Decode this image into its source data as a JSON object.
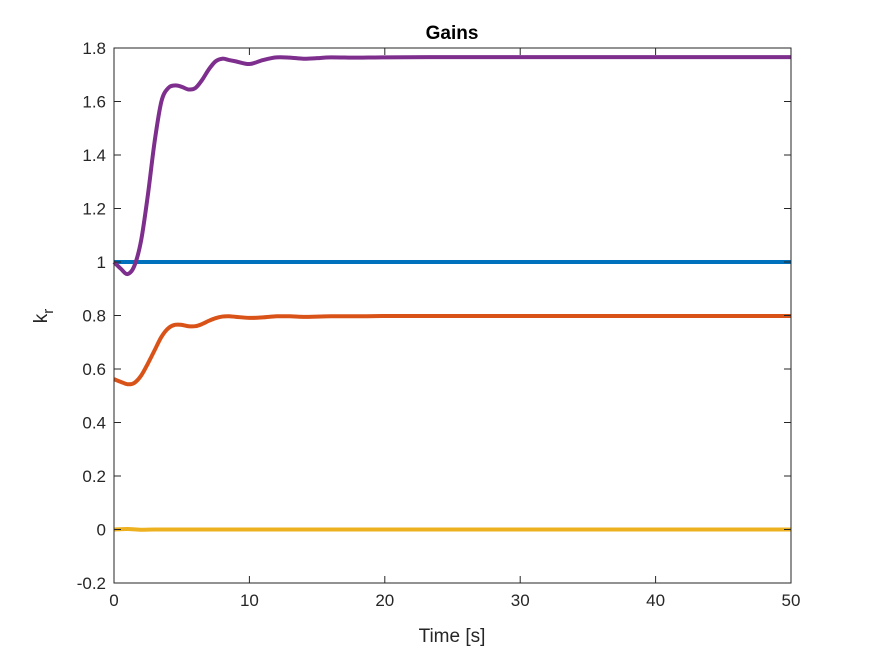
{
  "chart_data": {
    "type": "line",
    "title": "Gains",
    "xlabel": "Time [s]",
    "ylabel": "k",
    "ylabel_subscript": "r",
    "xlim": [
      0,
      50
    ],
    "ylim": [
      -0.2,
      1.8
    ],
    "xticks": [
      0,
      10,
      20,
      30,
      40,
      50
    ],
    "xtick_labels": [
      "0",
      "10",
      "20",
      "30",
      "40",
      "50"
    ],
    "yticks": [
      -0.2,
      0,
      0.2,
      0.4,
      0.6,
      0.8,
      1,
      1.2,
      1.4,
      1.6,
      1.8
    ],
    "ytick_labels": [
      "-0.2",
      "0",
      "0.2",
      "0.4",
      "0.6",
      "0.8",
      "1",
      "1.2",
      "1.4",
      "1.6",
      "1.8"
    ],
    "grid": false,
    "legend": "none",
    "series": [
      {
        "color": "#0072BD",
        "x": [
          0,
          50
        ],
        "y": [
          1.0,
          1.0
        ]
      },
      {
        "color": "#D95319",
        "x": [
          0,
          0.5,
          1.0,
          1.5,
          2.0,
          2.5,
          3.0,
          3.5,
          4.0,
          4.5,
          5.0,
          5.5,
          6.0,
          6.5,
          7.0,
          7.5,
          8.0,
          8.5,
          9.0,
          10.0,
          11.0,
          12.0,
          13.0,
          14.0,
          16.0,
          18.0,
          20.0,
          25.0,
          30.0,
          40.0,
          50.0
        ],
        "y": [
          0.562,
          0.552,
          0.543,
          0.548,
          0.575,
          0.62,
          0.67,
          0.72,
          0.752,
          0.765,
          0.765,
          0.76,
          0.76,
          0.768,
          0.78,
          0.79,
          0.796,
          0.797,
          0.795,
          0.791,
          0.793,
          0.797,
          0.797,
          0.795,
          0.797,
          0.797,
          0.798,
          0.798,
          0.798,
          0.798,
          0.798
        ]
      },
      {
        "color": "#EDB120",
        "x": [
          0,
          1,
          2,
          3,
          5,
          10,
          20,
          30,
          40,
          50
        ],
        "y": [
          0.0,
          0.002,
          -0.001,
          0.0,
          0.0,
          0.0,
          0.0,
          0.0,
          0.0,
          0.0
        ]
      },
      {
        "color": "#7E2F8E",
        "x": [
          0,
          0.5,
          1.0,
          1.5,
          2.0,
          2.5,
          3.0,
          3.5,
          4.0,
          4.5,
          5.0,
          5.5,
          6.0,
          6.5,
          7.0,
          7.5,
          8.0,
          8.5,
          9.0,
          10.0,
          11.0,
          12.0,
          13.0,
          14.0,
          15.0,
          16.0,
          18.0,
          20.0,
          25.0,
          30.0,
          40.0,
          50.0
        ],
        "y": [
          1.0,
          0.975,
          0.955,
          0.985,
          1.08,
          1.25,
          1.45,
          1.6,
          1.65,
          1.66,
          1.655,
          1.645,
          1.65,
          1.68,
          1.72,
          1.75,
          1.76,
          1.755,
          1.75,
          1.74,
          1.755,
          1.765,
          1.764,
          1.76,
          1.762,
          1.765,
          1.764,
          1.765,
          1.766,
          1.766,
          1.766,
          1.766
        ]
      }
    ]
  }
}
